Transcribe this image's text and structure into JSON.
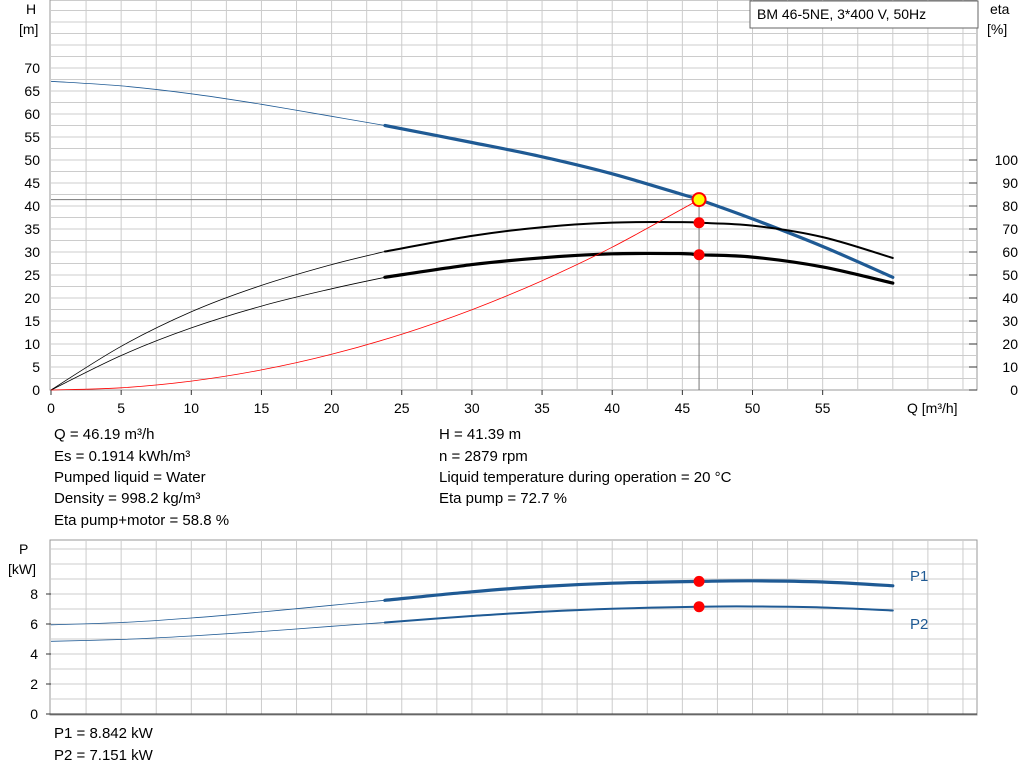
{
  "colors": {
    "curve_blue": "#1f5a94",
    "curve_black": "#000000",
    "curve_red": "#ff0000",
    "point_red": "#ff0000",
    "point_yellow": "#ffff00",
    "grid": "#cccccc",
    "label_blue": "#1f5a94"
  },
  "chart_data": [
    {
      "type": "line",
      "title": "BM 46-5NE, 3*400 V, 50Hz",
      "xlabel": "Q [m³/h]",
      "ylabel_left": [
        "H",
        "[m]"
      ],
      "ylabel_right": [
        "eta",
        "[%]"
      ],
      "xlim": [
        0,
        60
      ],
      "ylim_left": [
        0,
        75
      ],
      "ylim_right": [
        0,
        150
      ],
      "x_ticks": [
        "0",
        "5",
        "10",
        "15",
        "20",
        "25",
        "30",
        "35",
        "40",
        "45",
        "50",
        "55"
      ],
      "y_ticks_left": [
        "0",
        "5",
        "10",
        "15",
        "20",
        "25",
        "30",
        "35",
        "40",
        "45",
        "50",
        "55",
        "60",
        "65",
        "70"
      ],
      "y_ticks_right": [
        "0",
        "10",
        "20",
        "30",
        "40",
        "50",
        "60",
        "70",
        "80",
        "90",
        "100"
      ],
      "grid": true,
      "operating_range": [
        23.8,
        60
      ],
      "series": [
        {
          "key": "H",
          "axis": "left",
          "color": "#1f5a94",
          "weight": "thick",
          "x": [
            0,
            5,
            10,
            15,
            20,
            23.8,
            30,
            35,
            40,
            45,
            46.19,
            50,
            55,
            60
          ],
          "y": [
            67.1,
            66.1,
            64.4,
            62.1,
            59.5,
            57.5,
            53.8,
            50.7,
            47.0,
            42.5,
            41.39,
            37.2,
            31.2,
            24.5
          ]
        },
        {
          "key": "eta_pump",
          "axis": "right",
          "color": "#000000",
          "weight": "medium",
          "x": [
            0,
            5,
            10,
            15,
            20,
            23.8,
            30,
            35,
            40,
            45,
            46.19,
            50,
            55,
            60
          ],
          "y": [
            0,
            19.0,
            34.0,
            45.5,
            54.5,
            60.2,
            67.0,
            70.8,
            72.8,
            73.0,
            72.7,
            71.5,
            66.5,
            57.4
          ]
        },
        {
          "key": "eta_pump_motor",
          "axis": "right",
          "color": "#000000",
          "weight": "thick",
          "x": [
            0,
            5,
            10,
            15,
            20,
            23.8,
            30,
            35,
            40,
            45,
            46.19,
            50,
            55,
            60
          ],
          "y": [
            0,
            15.0,
            27.0,
            36.5,
            44.0,
            49.0,
            54.5,
            57.5,
            59.2,
            59.3,
            58.8,
            57.8,
            53.5,
            46.5
          ]
        },
        {
          "key": "system",
          "axis": "left",
          "color": "#ff0000",
          "weight": "thin",
          "x": [
            0,
            5,
            10,
            15,
            20,
            25,
            30,
            35,
            40,
            46.19
          ],
          "y": [
            0,
            0.48,
            1.94,
            4.36,
            7.76,
            12.13,
            17.46,
            23.77,
            31.04,
            41.39
          ]
        }
      ],
      "operating_point": {
        "q": 46.19,
        "h": 41.39,
        "eta_pump": 72.7,
        "eta_pump_motor": 58.8
      }
    },
    {
      "type": "line",
      "xlabel": "",
      "ylabel": [
        "P",
        "[kW]"
      ],
      "xlim": [
        0,
        60
      ],
      "ylim": [
        0,
        10
      ],
      "y_ticks": [
        "0",
        "2",
        "4",
        "6",
        "8"
      ],
      "grid": true,
      "operating_range": [
        23.8,
        60
      ],
      "series": [
        {
          "name": "P1",
          "color": "#1f5a94",
          "weight": "thick",
          "x": [
            0,
            5,
            10,
            15,
            20,
            23.8,
            30,
            35,
            40,
            46.19,
            50,
            55,
            60
          ],
          "y": [
            5.95,
            6.1,
            6.4,
            6.8,
            7.25,
            7.58,
            8.15,
            8.5,
            8.72,
            8.842,
            8.88,
            8.8,
            8.55
          ]
        },
        {
          "name": "P2",
          "color": "#1f5a94",
          "weight": "medium",
          "x": [
            0,
            5,
            10,
            15,
            20,
            23.8,
            30,
            35,
            40,
            46.19,
            50,
            55,
            60
          ],
          "y": [
            4.85,
            4.97,
            5.2,
            5.5,
            5.85,
            6.1,
            6.53,
            6.82,
            7.02,
            7.151,
            7.17,
            7.1,
            6.9
          ]
        }
      ],
      "operating_point": {
        "q": 46.19,
        "p1": 8.842,
        "p2": 7.151
      }
    }
  ],
  "results": {
    "left": [
      "Q = 46.19 m³/h",
      "Es = 0.1914 kWh/m³",
      "Pumped liquid = Water",
      "Density = 998.2 kg/m³",
      "Eta pump+motor = 58.8 %"
    ],
    "right": [
      "H = 41.39 m",
      "n = 2879 rpm",
      "Liquid temperature during operation = 20 °C",
      "Eta pump = 72.7 %"
    ],
    "power": [
      "P1 = 8.842 kW",
      "P2 = 7.151 kW"
    ]
  }
}
